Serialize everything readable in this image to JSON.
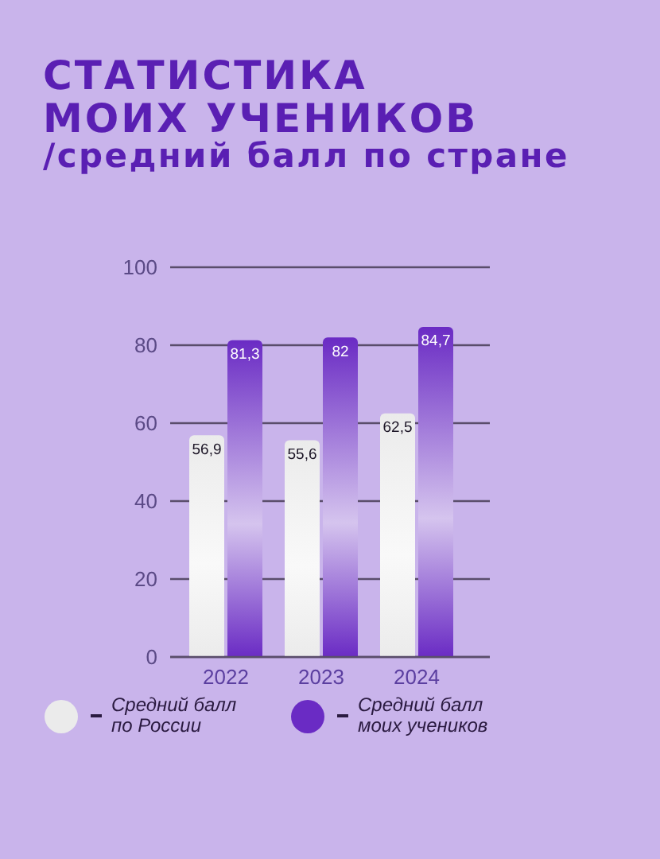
{
  "chart_data": {
    "type": "bar",
    "title": "СТАТИСТИКА МОИХ УЧЕНИКОВ",
    "subtitle": "/средний балл по стране",
    "categories": [
      "2022",
      "2023",
      "2024"
    ],
    "series": [
      {
        "name": "Средний балл по России",
        "color": "#ebebeb",
        "values": [
          56.9,
          55.6,
          62.5
        ],
        "value_labels": [
          "56,9",
          "55,6",
          "62,5"
        ]
      },
      {
        "name": "Средний балл моих учеников",
        "color": "#6a2bc4",
        "values": [
          81.3,
          82,
          84.7
        ],
        "value_labels": [
          "81,3",
          "82",
          "84,7"
        ]
      }
    ],
    "ylim": [
      0,
      100
    ],
    "yticks": [
      0,
      20,
      40,
      60,
      80,
      100
    ],
    "grid": "y",
    "legend": "bottom"
  }
}
